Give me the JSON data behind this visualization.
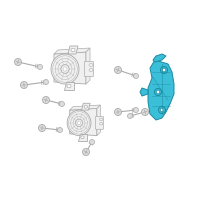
{
  "background_color": "#ffffff",
  "fig_width": 2.0,
  "fig_height": 2.0,
  "dpi": 100,
  "highlight_color": "#3bbfd8",
  "highlight_edge": "#1a8aa0",
  "part_color": "#f0f0f0",
  "part_edge": "#aaaaaa",
  "bolt_color": "#dddddd",
  "bolt_edge": "#aaaaaa",
  "line_color": "#999999"
}
